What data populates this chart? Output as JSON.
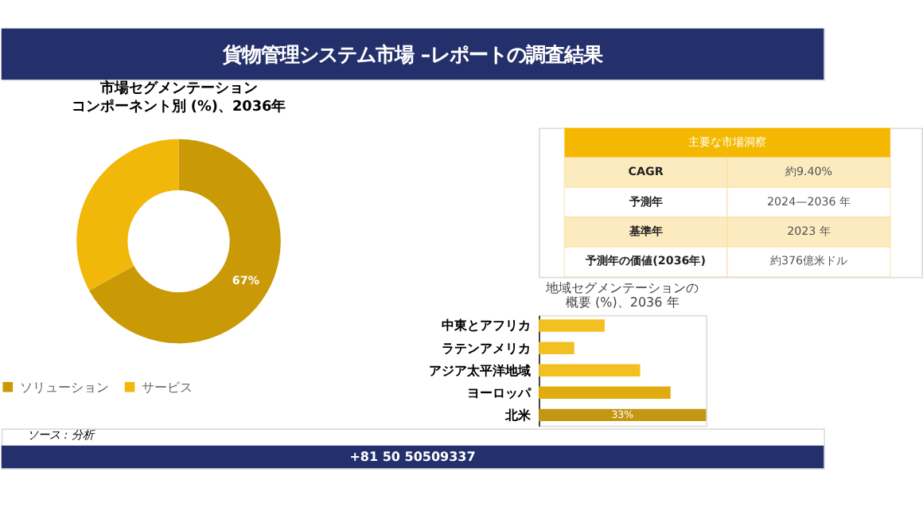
{
  "chart_data": [
    {
      "type": "other",
      "title": "貨物管理システム市場 –レポートの調査結果"
    },
    {
      "type": "donut",
      "title": "市場セグメンテーション",
      "subtitle": "コンポーネント別 (%)、2036年",
      "categories": [
        "ソリューション",
        "サービス"
      ],
      "values": [
        67,
        33
      ],
      "colors": [
        "#c99a06",
        "#f1b80a"
      ],
      "value_labels": [
        "67%",
        null
      ],
      "legend": "bottom"
    },
    {
      "type": "other",
      "title": "主要な市場洞察",
      "annotations": [
        "CAGR",
        "約9.40%",
        "予測年",
        "2024—2036 年",
        "基準年",
        "2023 年",
        "予測年の価値(2036年)",
        "約376億米ドル"
      ]
    },
    {
      "type": "bar",
      "orientation": "horizontal",
      "title": "地域セグメンテーションの",
      "subtitle": "概要 (%)、2036 年",
      "categories": [
        "中東とアフリカ",
        "ラテンアメリカ",
        "アジア太平洋地域",
        "ヨーロッパ",
        "北米"
      ],
      "values": [
        13,
        7,
        20,
        26,
        33
      ],
      "colors": [
        "#f3c022",
        "#f3c022",
        "#f3c022",
        "#e0ac10",
        "#c39712"
      ],
      "value_labels": [
        null,
        null,
        null,
        null,
        "33%"
      ]
    },
    {
      "type": "other",
      "annotations": [
        "ソース : 分析",
        "+81 50 50509337"
      ]
    }
  ]
}
